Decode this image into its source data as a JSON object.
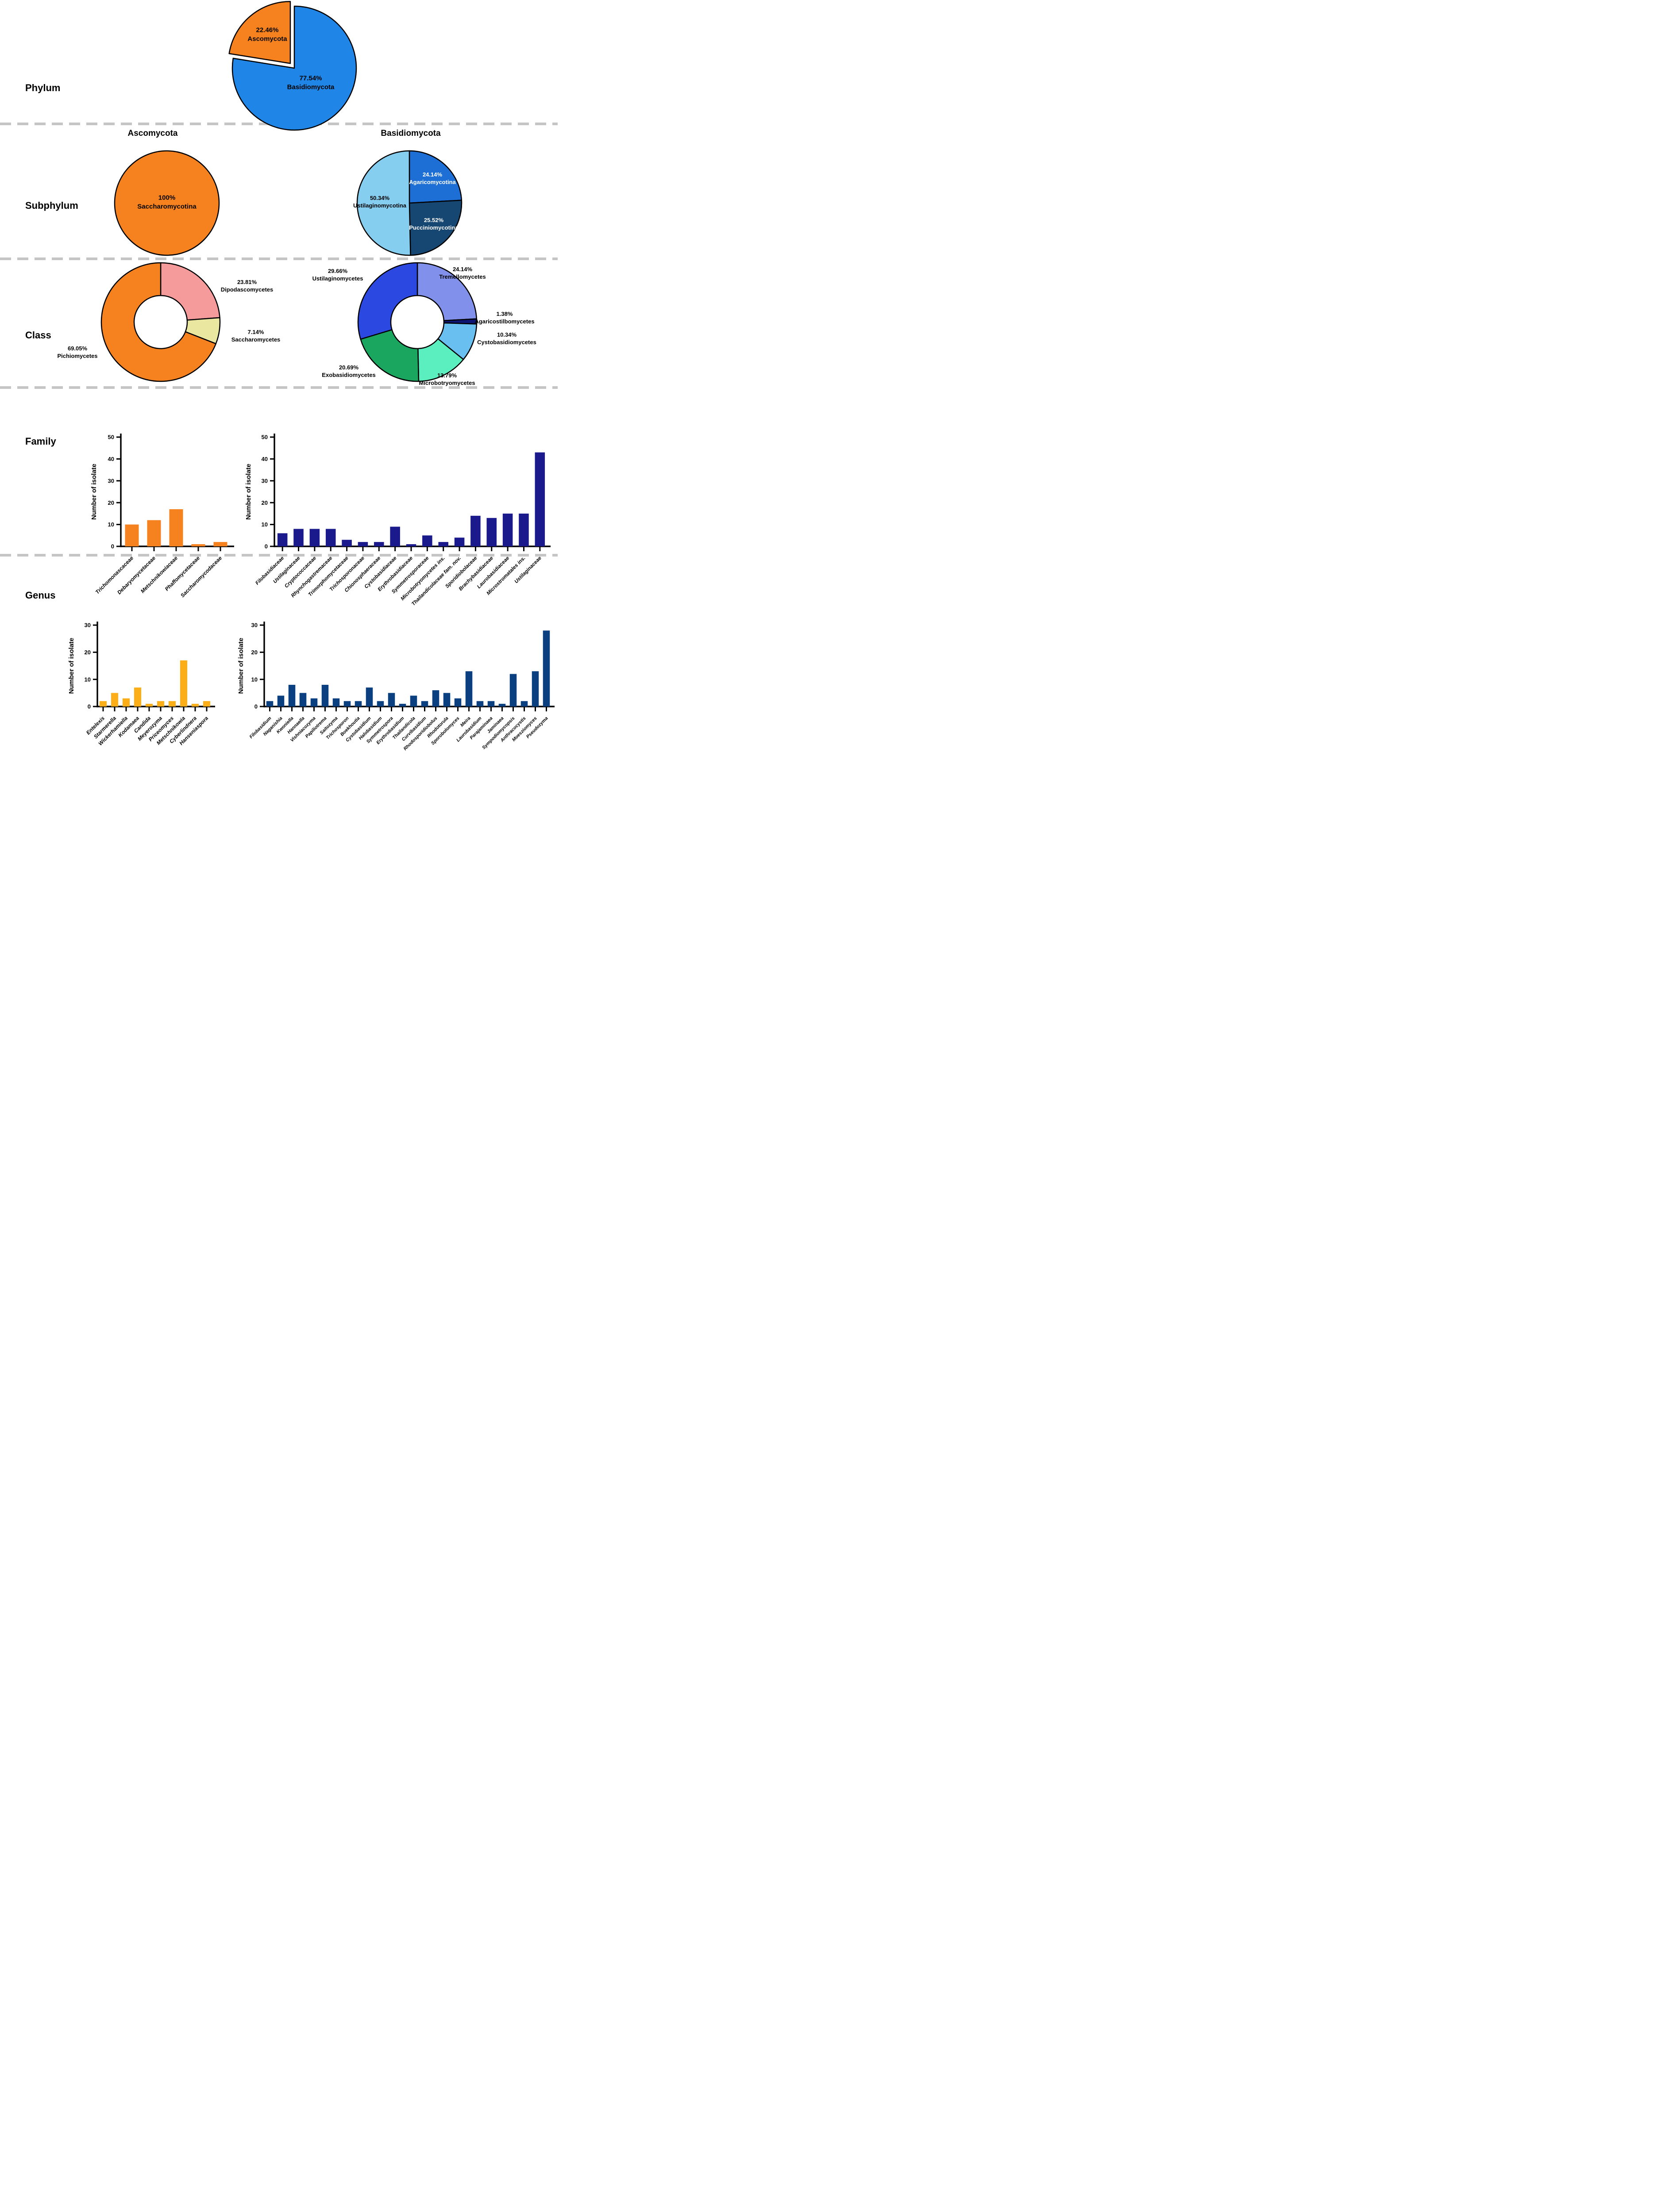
{
  "figure": {
    "sections": [
      {
        "label": "Phylum"
      },
      {
        "label": "Subphylum"
      },
      {
        "label": "Class"
      },
      {
        "label": "Family"
      },
      {
        "label": "Genus"
      }
    ]
  },
  "colors": {
    "ascomycota_orange": "#F5821F",
    "basidiomycota_blue": "#1F86E8",
    "family_navy": "#1A1A8C",
    "genus_steel_blue": "#0B4080",
    "genus_amber": "#FBAE17",
    "separator_gray": "#C5C5C5"
  },
  "chart_data": [
    {
      "id": "phylum-pie",
      "type": "pie",
      "slices": [
        {
          "name": "Basidiomycota",
          "value": 77.54,
          "pct": "77.54%",
          "color": "#1F86E8",
          "label_color": "#000000"
        },
        {
          "name": "Ascomycota",
          "value": 22.46,
          "pct": "22.46%",
          "color": "#F5821F",
          "label_color": "#000000",
          "exploded": true
        }
      ]
    },
    {
      "id": "subphylum-ascomycota-pie",
      "type": "pie",
      "title": "Ascomycota",
      "slices": [
        {
          "name": "Saccharomycotina",
          "value": 100,
          "pct": "100%",
          "color": "#F5821F",
          "label_color": "#000000"
        }
      ]
    },
    {
      "id": "subphylum-basidiomycota-pie",
      "type": "pie",
      "title": "Basidiomycota",
      "slices": [
        {
          "name": "Agaricomycotina",
          "value": 24.14,
          "pct": "24.14%",
          "color": "#1D6FD6",
          "label_color": "#FFFFFF"
        },
        {
          "name": "Pucciniomycotina",
          "value": 25.52,
          "pct": "25.52%",
          "color": "#164672",
          "label_color": "#FFFFFF"
        },
        {
          "name": "Ustilaginomycotina",
          "value": 50.34,
          "pct": "50.34%",
          "color": "#85CEF0",
          "label_color": "#000000"
        }
      ]
    },
    {
      "id": "class-ascomycota-donut",
      "type": "donut",
      "slices": [
        {
          "name": "Dipodascomycetes",
          "value": 23.81,
          "pct": "23.81%",
          "color": "#F59B9B"
        },
        {
          "name": "Saccharomycetes",
          "value": 7.14,
          "pct": "7.14%",
          "color": "#EAE8A0"
        },
        {
          "name": "Pichiomycetes",
          "value": 69.05,
          "pct": "69.05%",
          "color": "#F5821F"
        }
      ]
    },
    {
      "id": "class-basidiomycota-donut",
      "type": "donut",
      "slices": [
        {
          "name": "Tremellomycetes",
          "value": 24.14,
          "pct": "24.14%",
          "color": "#8190EA"
        },
        {
          "name": "Agaricostilbomycetes",
          "value": 1.38,
          "pct": "1.38%",
          "color": "#0D1472"
        },
        {
          "name": "Cystobasidiomycetes",
          "value": 10.34,
          "pct": "10.34%",
          "color": "#69BFEF"
        },
        {
          "name": "Microbotryomycetes",
          "value": 13.79,
          "pct": "13.79%",
          "color": "#5BEFC0"
        },
        {
          "name": "Exobasidiomycetes",
          "value": 20.69,
          "pct": "20.69%",
          "color": "#1BA65F"
        },
        {
          "name": "Ustilaginomycetes",
          "value": 29.66,
          "pct": "29.66%",
          "color": "#2B49E0"
        }
      ]
    },
    {
      "id": "family-ascomycota-bar",
      "type": "bar",
      "ylabel": "Number of isolate",
      "ylim": [
        0,
        50
      ],
      "yticks": [
        0,
        10,
        20,
        30,
        40,
        50
      ],
      "bar_color": "#F5821F",
      "categories": [
        "Trichomonascaceae",
        "Debaryomycetaceae",
        "Metschnikowiaceae",
        "Phaffomycetaceae",
        "Saccharomycodaceae"
      ],
      "values": [
        10,
        12,
        17,
        1,
        2
      ]
    },
    {
      "id": "family-basidiomycota-bar",
      "type": "bar",
      "ylabel": "Number of isolate",
      "ylim": [
        0,
        50
      ],
      "yticks": [
        0,
        10,
        20,
        30,
        40,
        50
      ],
      "bar_color": "#1A1A8C",
      "categories": [
        "Filobasidiaceae",
        "Ustilaginaceae",
        "Cryptococcaceae",
        "Rhynchogastremaceae",
        "Trimorphomycetaceae",
        "Trichosporonaceae",
        "Chionosphaeraceae",
        "Cystobasidiaceae",
        "Erythrobasidiaceae",
        "Symmetrosporaceae",
        "Microbotryomycetes ins.",
        "Thailandicolaceae fam. nov.",
        "Sporidiobolaceae",
        "Brachybasidiaceae",
        "Laurobasidiaceae",
        "Microstromatales ins.",
        "Ustilaginaceae"
      ],
      "values": [
        6,
        8,
        8,
        8,
        3,
        2,
        2,
        9,
        1,
        5,
        2,
        4,
        14,
        13,
        15,
        15,
        43
      ]
    },
    {
      "id": "genus-ascomycota-bar",
      "type": "bar",
      "ylabel": "Number of isolate",
      "ylim": [
        0,
        30
      ],
      "yticks": [
        0,
        10,
        20,
        30
      ],
      "bar_color": "#FBAE17",
      "categories": [
        "Entelexis",
        "Starmerella",
        "Wickerhamiella",
        "Kodamaea",
        "Candida",
        "Meyerozyma",
        "Priceomyces",
        "Metschnikowia",
        "Cyberlindnera",
        "Hanseniaspora"
      ],
      "values": [
        2,
        5,
        3,
        7,
        1,
        2,
        2,
        17,
        1,
        2
      ]
    },
    {
      "id": "genus-basidiomycota-bar",
      "type": "bar",
      "ylabel": "Number of isolate",
      "ylim": [
        0,
        30
      ],
      "yticks": [
        0,
        10,
        20,
        30
      ],
      "bar_color": "#0B4080",
      "categories": [
        "Filobasidium",
        "Naganishia",
        "Kwoniella",
        "Hannaella",
        "Vishniacozyma",
        "Papiliotrema",
        "Saitozyma",
        "Trichosporon",
        "Boekhoutia",
        "Cystobasidium",
        "Halobasidium",
        "Symmetrospora",
        "Erythrobasidium",
        "Thailandicola",
        "Curvibasidium",
        "Rhodosporidiobolus",
        "Rhodotorula",
        "Sporobolomyces",
        "Meira",
        "Laurobasidium",
        "Parajaminaea",
        "Jaminaea",
        "Sympodiomycopsis",
        "Anthracocystis",
        "Moesziomyces",
        "Pseudozyma"
      ],
      "values": [
        2,
        4,
        8,
        5,
        3,
        8,
        3,
        2,
        2,
        7,
        2,
        5,
        1,
        4,
        2,
        6,
        5,
        3,
        13,
        2,
        2,
        1,
        12,
        2,
        13,
        28
      ]
    }
  ]
}
